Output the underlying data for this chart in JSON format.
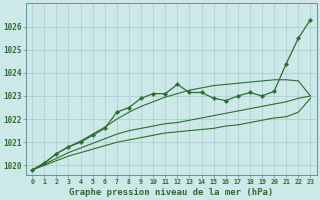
{
  "title": "Graphe pression niveau de la mer (hPa)",
  "bg_color": "#cce8e8",
  "grid_color": "#aacccc",
  "line_color": "#2d6e2d",
  "xlim_min": -0.5,
  "xlim_max": 23.5,
  "ylim_min": 1019.6,
  "ylim_max": 1027.0,
  "yticks": [
    1020,
    1021,
    1022,
    1023,
    1024,
    1025,
    1026
  ],
  "xticks": [
    0,
    1,
    2,
    3,
    4,
    5,
    6,
    7,
    8,
    9,
    10,
    11,
    12,
    13,
    14,
    15,
    16,
    17,
    18,
    19,
    20,
    21,
    22,
    23
  ],
  "hours": [
    0,
    1,
    2,
    3,
    4,
    5,
    6,
    7,
    8,
    9,
    10,
    11,
    12,
    13,
    14,
    15,
    16,
    17,
    18,
    19,
    20,
    21,
    22,
    23
  ],
  "line_main": [
    1019.8,
    1020.1,
    1020.5,
    1020.8,
    1021.0,
    1021.3,
    1021.6,
    1022.3,
    1022.5,
    1022.9,
    1023.1,
    1023.1,
    1023.5,
    1023.15,
    1023.15,
    1022.9,
    1022.8,
    1023.0,
    1023.15,
    1023.0,
    1023.2,
    1024.4,
    1025.5,
    1026.3
  ],
  "line_max": [
    1019.8,
    1020.1,
    1020.5,
    1020.8,
    1021.05,
    1021.35,
    1021.65,
    1022.0,
    1022.3,
    1022.55,
    1022.75,
    1022.95,
    1023.1,
    1023.25,
    1023.35,
    1023.45,
    1023.5,
    1023.55,
    1023.6,
    1023.65,
    1023.7,
    1023.7,
    1023.65,
    1023.0
  ],
  "line_avg": [
    1019.8,
    1020.05,
    1020.3,
    1020.55,
    1020.75,
    1020.95,
    1021.15,
    1021.35,
    1021.5,
    1021.6,
    1021.7,
    1021.8,
    1021.85,
    1021.95,
    1022.05,
    1022.15,
    1022.25,
    1022.35,
    1022.45,
    1022.55,
    1022.65,
    1022.75,
    1022.9,
    1023.0
  ],
  "line_min": [
    1019.8,
    1020.0,
    1020.2,
    1020.4,
    1020.55,
    1020.7,
    1020.85,
    1021.0,
    1021.1,
    1021.2,
    1021.3,
    1021.4,
    1021.45,
    1021.5,
    1021.55,
    1021.6,
    1021.7,
    1021.75,
    1021.85,
    1021.95,
    1022.05,
    1022.1,
    1022.3,
    1022.9
  ]
}
